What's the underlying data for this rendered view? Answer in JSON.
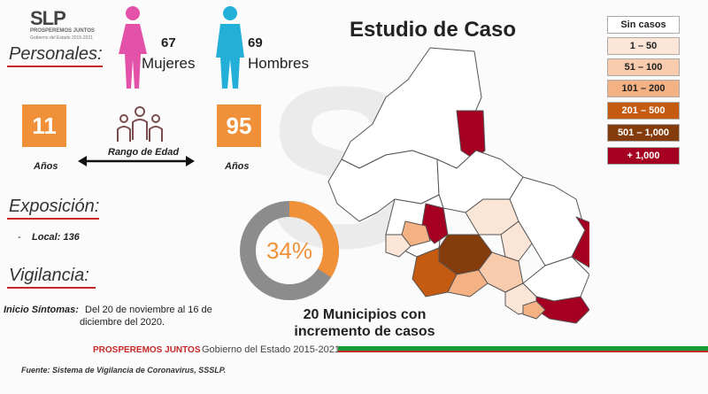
{
  "logo": {
    "mark": "SLP",
    "line1": "PROSPEREMOS JUNTOS",
    "line2": "Gobierno del Estado 2015-2021"
  },
  "personales": {
    "label": "Personales:",
    "women_count": "67",
    "women_label": "Mujeres",
    "men_count": "69",
    "men_label": "Hombres"
  },
  "age": {
    "min": "11",
    "max": "95",
    "range_label": "Rango de Edad",
    "unit_left": "Años",
    "unit_right": "Años"
  },
  "exposicion": {
    "label": "Exposición:",
    "bullet": "-",
    "item": "Local: 136"
  },
  "vigilancia": {
    "label": "Vigilancia:",
    "sintomas_label": "Inicio Síntomas:",
    "sintomas_text_1": "Del 20 de noviembre al 16 de",
    "sintomas_text_2": "diciembre del 2020."
  },
  "donut": {
    "percent_label": "34%",
    "fraction": 0.34,
    "fill_color": "#f0913a",
    "rest_color": "#8c8c8c"
  },
  "title": "Estudio de Caso",
  "municipios": {
    "line1": "20 Municipios con",
    "line2": "incremento de casos"
  },
  "legend": [
    {
      "label": "Sin casos",
      "color": "#ffffff",
      "text_color": "#222"
    },
    {
      "label": "1 – 50",
      "color": "#fbe5d6",
      "text_color": "#222"
    },
    {
      "label": "51 – 100",
      "color": "#f8cbad",
      "text_color": "#222"
    },
    {
      "label": "101 – 200",
      "color": "#f4b183",
      "text_color": "#222"
    },
    {
      "label": "201 – 500",
      "color": "#c55a11",
      "text_color": "#ffffff"
    },
    {
      "label": "501 – 1,000",
      "color": "#843c0c",
      "text_color": "#ffffff"
    },
    {
      "label": "+ 1,000",
      "color": "#a50021",
      "text_color": "#ffffff"
    }
  ],
  "footer": {
    "brand": "PROSPEREMOS JUNTOS",
    "gov": "Gobierno del Estado 2015-2021",
    "source": "Fuente: Sistema de Vigilancia de Coronavirus, SSSLP."
  }
}
